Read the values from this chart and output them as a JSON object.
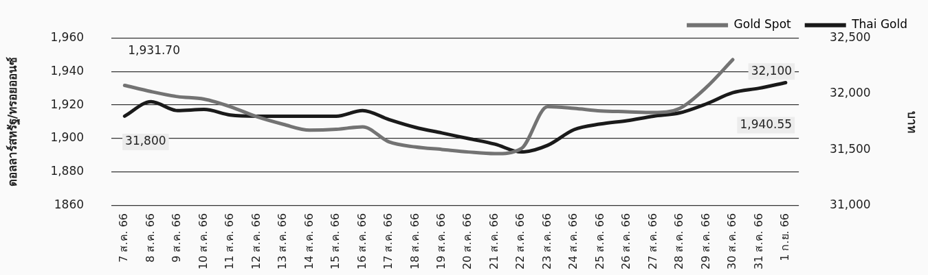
{
  "chart_data": {
    "type": "line",
    "ylabel": "ดอลลาร์สหรัฐ/ทรอยออนซ์",
    "y2label": "บาท",
    "categories": [
      "7 ส.ค. 66",
      "8 ส.ค. 66",
      "9 ส.ค. 66",
      "10 ส.ค. 66",
      "11 ส.ค. 66",
      "12 ส.ค. 66",
      "13 ส.ค. 66",
      "14 ส.ค. 66",
      "15 ส.ค. 66",
      "16 ส.ค. 66",
      "17 ส.ค. 66",
      "18 ส.ค. 66",
      "19 ส.ค. 66",
      "20 ส.ค. 66",
      "21 ส.ค. 66",
      "22 ส.ค. 66",
      "23 ส.ค. 66",
      "24 ส.ค. 66",
      "25 ส.ค. 66",
      "26 ส.ค. 66",
      "27 ส.ค. 66",
      "28 ส.ค. 66",
      "29 ส.ค. 66",
      "30 ส.ค. 66",
      "31 ส.ค. 66",
      "1 ก.ย. 66"
    ],
    "series": [
      {
        "name": "Gold Spot",
        "color": "#737373",
        "values": [
          1931.7,
          1928,
          1925,
          1923.5,
          1919,
          1913,
          1908.5,
          1905,
          1905.5,
          1907,
          1898,
          1895,
          1893.5,
          1892,
          1891,
          1894,
          1919,
          1918,
          1916.5,
          1916,
          1915.5,
          1918,
          1930.5,
          1947,
          null,
          null
        ]
      },
      {
        "name": "Thai Gold",
        "color": "#1a1a1a",
        "axis": "y2",
        "values": [
          31800,
          31930,
          31850,
          31860,
          31810,
          31800,
          31800,
          31800,
          31800,
          31850,
          31770,
          31700,
          31650,
          31600,
          31550,
          31480,
          31540,
          31680,
          31730,
          31760,
          31800,
          31830,
          31910,
          32010,
          32050,
          32100
        ]
      }
    ],
    "ylim": [
      1860,
      1960
    ],
    "yticks": [
      1860,
      {
        "value": 1880,
        "label": "1,880"
      },
      {
        "value": 1900,
        "label": "1,900"
      },
      {
        "value": 1920,
        "label": "1,920"
      },
      {
        "value": 1940,
        "label": "1,940"
      },
      {
        "value": 1960,
        "label": "1,960"
      }
    ],
    "y2lim": [
      31000,
      32500
    ],
    "y2ticks": [
      {
        "value": 31000,
        "label": "31,000"
      },
      {
        "value": 31500,
        "label": "31,500"
      },
      {
        "value": 32000,
        "label": "32,000"
      },
      {
        "value": 32500,
        "label": "32,500"
      }
    ],
    "annotations": [
      {
        "text": "1,931.70",
        "x": "7 ส.ค. 66",
        "y": 1931.7
      },
      "31,800",
      "32,100",
      "1,940.55"
    ],
    "grid": "y",
    "legend": "top right",
    "marker": "none",
    "line_style": "solid"
  }
}
